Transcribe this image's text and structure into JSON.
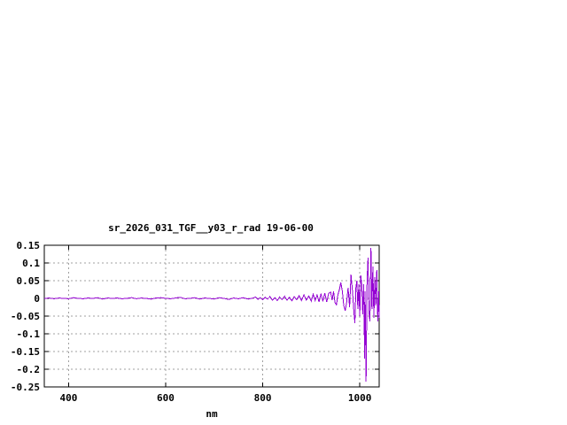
{
  "window": {
    "background": "#ffffff"
  },
  "chart_data": {
    "type": "line",
    "title": "sr_2026_031_TGF__y03_r_rad 19-06-00",
    "xlabel": "nm",
    "ylabel": "",
    "xlim": [
      350,
      1040
    ],
    "ylim": [
      -0.25,
      0.15
    ],
    "xticks": [
      400,
      600,
      800,
      1000
    ],
    "xtick_labels": [
      "400",
      "600",
      "800",
      "1000"
    ],
    "yticks": [
      0.15,
      0.1,
      0.05,
      0,
      -0.05,
      -0.1,
      -0.15,
      -0.2,
      -0.25
    ],
    "ytick_labels": [
      "0.15",
      "0.1",
      "0.05",
      "0",
      "-0.05",
      "-0.1",
      "-0.15",
      "-0.2",
      "-0.25"
    ],
    "grid": true,
    "legend_position": "none",
    "line_color": "#9400d3",
    "grid_color": "#a0a0a0",
    "border_color": "#000000",
    "series": [
      {
        "name": "sr_2026_031_TGF__y03_r_rad",
        "points": [
          [
            350,
            0.0
          ],
          [
            360,
            0.001
          ],
          [
            370,
            -0.001
          ],
          [
            380,
            0.001
          ],
          [
            390,
            0.0
          ],
          [
            400,
            -0.001
          ],
          [
            410,
            0.002
          ],
          [
            420,
            0.0
          ],
          [
            430,
            -0.001
          ],
          [
            440,
            0.001
          ],
          [
            450,
            0.0
          ],
          [
            460,
            0.002
          ],
          [
            470,
            -0.002
          ],
          [
            480,
            0.001
          ],
          [
            490,
            0.0
          ],
          [
            500,
            0.001
          ],
          [
            510,
            -0.001
          ],
          [
            520,
            0.0
          ],
          [
            530,
            0.002
          ],
          [
            540,
            -0.001
          ],
          [
            550,
            0.001
          ],
          [
            560,
            0.0
          ],
          [
            570,
            -0.002
          ],
          [
            580,
            0.001
          ],
          [
            590,
            0.002
          ],
          [
            600,
            0.0
          ],
          [
            610,
            -0.001
          ],
          [
            620,
            0.001
          ],
          [
            630,
            0.003
          ],
          [
            640,
            -0.001
          ],
          [
            650,
            0.0
          ],
          [
            660,
            0.002
          ],
          [
            670,
            -0.002
          ],
          [
            680,
            0.001
          ],
          [
            690,
            0.0
          ],
          [
            700,
            -0.002
          ],
          [
            710,
            0.002
          ],
          [
            720,
            0.0
          ],
          [
            730,
            -0.003
          ],
          [
            740,
            0.001
          ],
          [
            750,
            -0.001
          ],
          [
            760,
            0.002
          ],
          [
            770,
            -0.002
          ],
          [
            780,
            0.001
          ],
          [
            785,
            0.004
          ],
          [
            790,
            -0.003
          ],
          [
            795,
            0.002
          ],
          [
            800,
            -0.004
          ],
          [
            805,
            0.003
          ],
          [
            810,
            -0.002
          ],
          [
            815,
            0.005
          ],
          [
            820,
            -0.005
          ],
          [
            825,
            0.002
          ],
          [
            830,
            -0.006
          ],
          [
            835,
            0.004
          ],
          [
            840,
            -0.003
          ],
          [
            845,
            0.006
          ],
          [
            850,
            -0.005
          ],
          [
            855,
            0.003
          ],
          [
            860,
            -0.007
          ],
          [
            865,
            0.005
          ],
          [
            870,
            -0.004
          ],
          [
            875,
            0.008
          ],
          [
            880,
            -0.006
          ],
          [
            885,
            0.01
          ],
          [
            890,
            -0.005
          ],
          [
            895,
            0.007
          ],
          [
            900,
            -0.008
          ],
          [
            904,
            0.012
          ],
          [
            908,
            -0.006
          ],
          [
            912,
            0.01
          ],
          [
            916,
            -0.01
          ],
          [
            920,
            0.013
          ],
          [
            924,
            -0.008
          ],
          [
            928,
            0.015
          ],
          [
            932,
            -0.01
          ],
          [
            936,
            0.014
          ],
          [
            940,
            0.018
          ],
          [
            943,
            -0.005
          ],
          [
            946,
            0.02
          ],
          [
            949,
            -0.012
          ],
          [
            952,
            -0.018
          ],
          [
            955,
            0.01
          ],
          [
            958,
            0.025
          ],
          [
            961,
            0.045
          ],
          [
            964,
            0.02
          ],
          [
            967,
            -0.02
          ],
          [
            970,
            -0.035
          ],
          [
            973,
            -0.01
          ],
          [
            976,
            0.03
          ],
          [
            979,
            -0.025
          ],
          [
            982,
            0.067
          ],
          [
            985,
            0.02
          ],
          [
            988,
            -0.04
          ],
          [
            990,
            -0.07
          ],
          [
            992,
            0.03
          ],
          [
            994,
            0.05
          ],
          [
            996,
            -0.03
          ],
          [
            998,
            0.04
          ],
          [
            1000,
            -0.05
          ],
          [
            1002,
            0.065
          ],
          [
            1004,
            0.04
          ],
          [
            1006,
            -0.045
          ],
          [
            1008,
            0.04
          ],
          [
            1010,
            -0.17
          ],
          [
            1011,
            0.02
          ],
          [
            1013,
            -0.235
          ],
          [
            1015,
            0.05
          ],
          [
            1017,
            0.115
          ],
          [
            1019,
            -0.04
          ],
          [
            1021,
            -0.065
          ],
          [
            1023,
            0.143
          ],
          [
            1025,
            -0.03
          ],
          [
            1027,
            0.09
          ],
          [
            1029,
            -0.055
          ],
          [
            1031,
            0.06
          ],
          [
            1033,
            -0.02
          ],
          [
            1035,
            0.08
          ],
          [
            1037,
            -0.065
          ],
          [
            1039,
            0.02
          ],
          [
            1040,
            -0.055
          ]
        ]
      }
    ]
  }
}
